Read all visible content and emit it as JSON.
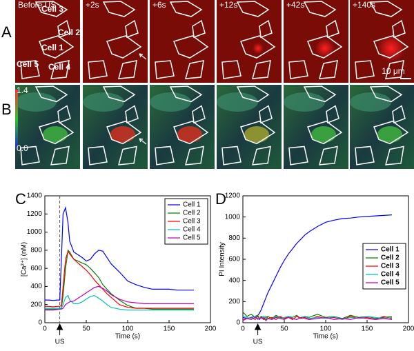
{
  "panel_labels": [
    "A",
    "B",
    "C",
    "D"
  ],
  "time_labels": [
    "Before US",
    "+2s",
    "+6s",
    "+12s",
    "+42s",
    "+140s"
  ],
  "cell_labels": [
    "Cell 3",
    "Cell 2",
    "Cell 1",
    "Cell 5",
    "Cell 4"
  ],
  "scale_bar": "10 μm",
  "colorbar_labels": [
    "1.4",
    "0.0"
  ],
  "chart_data": [
    {
      "type": "line",
      "ylabel": "[Ca²⁺] (nM)",
      "xlabel": "Time (s)",
      "xlim": [
        0,
        200
      ],
      "xticks": [
        0,
        50,
        100,
        150,
        200
      ],
      "ylim": [
        0,
        1400
      ],
      "yticks": [
        0,
        200,
        400,
        600,
        800,
        1000,
        1200,
        1400
      ],
      "annotation": {
        "text": "US",
        "x": 18
      },
      "dashed_line": true,
      "legend": "upper right",
      "x": [
        0,
        5,
        10,
        15,
        18,
        20,
        22,
        25,
        28,
        30,
        35,
        40,
        45,
        50,
        55,
        60,
        65,
        70,
        75,
        80,
        90,
        100,
        110,
        120,
        130,
        140,
        150,
        160,
        170,
        180
      ],
      "series": [
        {
          "name": "Cell 1",
          "color": "#0000ff",
          "values": [
            250,
            250,
            245,
            250,
            250,
            700,
            1200,
            1270,
            1100,
            900,
            780,
            750,
            720,
            680,
            700,
            760,
            800,
            790,
            720,
            650,
            560,
            460,
            420,
            390,
            370,
            370,
            370,
            360,
            360,
            360
          ]
        },
        {
          "name": "Cell 2",
          "color": "#008000",
          "values": [
            150,
            150,
            150,
            150,
            150,
            160,
            300,
            600,
            800,
            780,
            700,
            680,
            660,
            640,
            600,
            550,
            500,
            420,
            370,
            320,
            250,
            190,
            160,
            160,
            150,
            150,
            150,
            150,
            150,
            150
          ]
        },
        {
          "name": "Cell 3",
          "color": "#ff0000",
          "values": [
            180,
            180,
            175,
            180,
            180,
            190,
            400,
            700,
            790,
            760,
            700,
            660,
            620,
            580,
            530,
            470,
            420,
            370,
            320,
            280,
            200,
            170,
            160,
            160,
            160,
            160,
            160,
            160,
            160,
            160
          ]
        },
        {
          "name": "Cell 4",
          "color": "#00bfbf",
          "values": [
            160,
            160,
            160,
            160,
            160,
            160,
            200,
            280,
            300,
            250,
            210,
            210,
            230,
            260,
            290,
            300,
            270,
            240,
            200,
            170,
            150,
            140,
            140,
            140,
            140,
            140,
            140,
            140,
            140,
            140
          ]
        },
        {
          "name": "Cell 5",
          "color": "#bf00bf",
          "values": [
            140,
            140,
            140,
            145,
            150,
            150,
            160,
            200,
            220,
            230,
            240,
            270,
            300,
            330,
            360,
            390,
            400,
            380,
            350,
            310,
            260,
            230,
            220,
            210,
            210,
            210,
            210,
            210,
            210,
            210
          ]
        }
      ]
    },
    {
      "type": "line",
      "ylabel": "PI Intensity",
      "xlabel": "Time (s)",
      "xlim": [
        0,
        200
      ],
      "xticks": [
        0,
        50,
        100,
        150,
        200
      ],
      "ylim": [
        0,
        1200
      ],
      "yticks": [
        0,
        200,
        400,
        600,
        800,
        1000,
        1200
      ],
      "annotation": {
        "text": "US",
        "x": 18
      },
      "dashed_line": false,
      "legend": "center right",
      "x": [
        0,
        5,
        10,
        15,
        18,
        20,
        22,
        25,
        28,
        30,
        35,
        40,
        45,
        50,
        55,
        60,
        65,
        70,
        75,
        80,
        90,
        100,
        110,
        120,
        130,
        140,
        150,
        160,
        170,
        180
      ],
      "series": [
        {
          "name": "Cell 1",
          "color": "#0000ff",
          "values": [
            50,
            40,
            50,
            60,
            70,
            90,
            120,
            180,
            240,
            280,
            360,
            440,
            520,
            590,
            650,
            700,
            750,
            790,
            830,
            860,
            910,
            950,
            970,
            985,
            990,
            1000,
            1005,
            1010,
            1015,
            1020
          ]
        },
        {
          "name": "Cell 2",
          "color": "#008000",
          "values": [
            100,
            60,
            80,
            50,
            70,
            40,
            60,
            50,
            30,
            60,
            40,
            70,
            50,
            40,
            60,
            50,
            70,
            40,
            60,
            50,
            80,
            50,
            60,
            40,
            70,
            50,
            60,
            40,
            50,
            60
          ]
        },
        {
          "name": "Cell 3",
          "color": "#ff0000",
          "values": [
            30,
            40,
            50,
            30,
            60,
            40,
            50,
            30,
            60,
            40,
            50,
            30,
            60,
            40,
            50,
            30,
            60,
            40,
            50,
            30,
            60,
            40,
            50,
            30,
            60,
            40,
            50,
            30,
            60,
            40
          ]
        },
        {
          "name": "Cell 4",
          "color": "#00bfbf",
          "values": [
            60,
            50,
            40,
            60,
            30,
            50,
            40,
            60,
            50,
            40,
            30,
            60,
            40,
            50,
            60,
            40,
            30,
            50,
            60,
            40,
            50,
            40,
            60,
            30,
            50,
            40,
            60,
            50,
            40,
            50
          ]
        },
        {
          "name": "Cell 5",
          "color": "#bf00bf",
          "values": [
            20,
            40,
            30,
            50,
            40,
            30,
            50,
            40,
            20,
            40,
            30,
            50,
            40,
            30,
            50,
            40,
            30,
            50,
            40,
            30,
            40,
            50,
            30,
            40,
            30,
            50,
            40,
            30,
            40,
            30
          ]
        }
      ]
    }
  ]
}
